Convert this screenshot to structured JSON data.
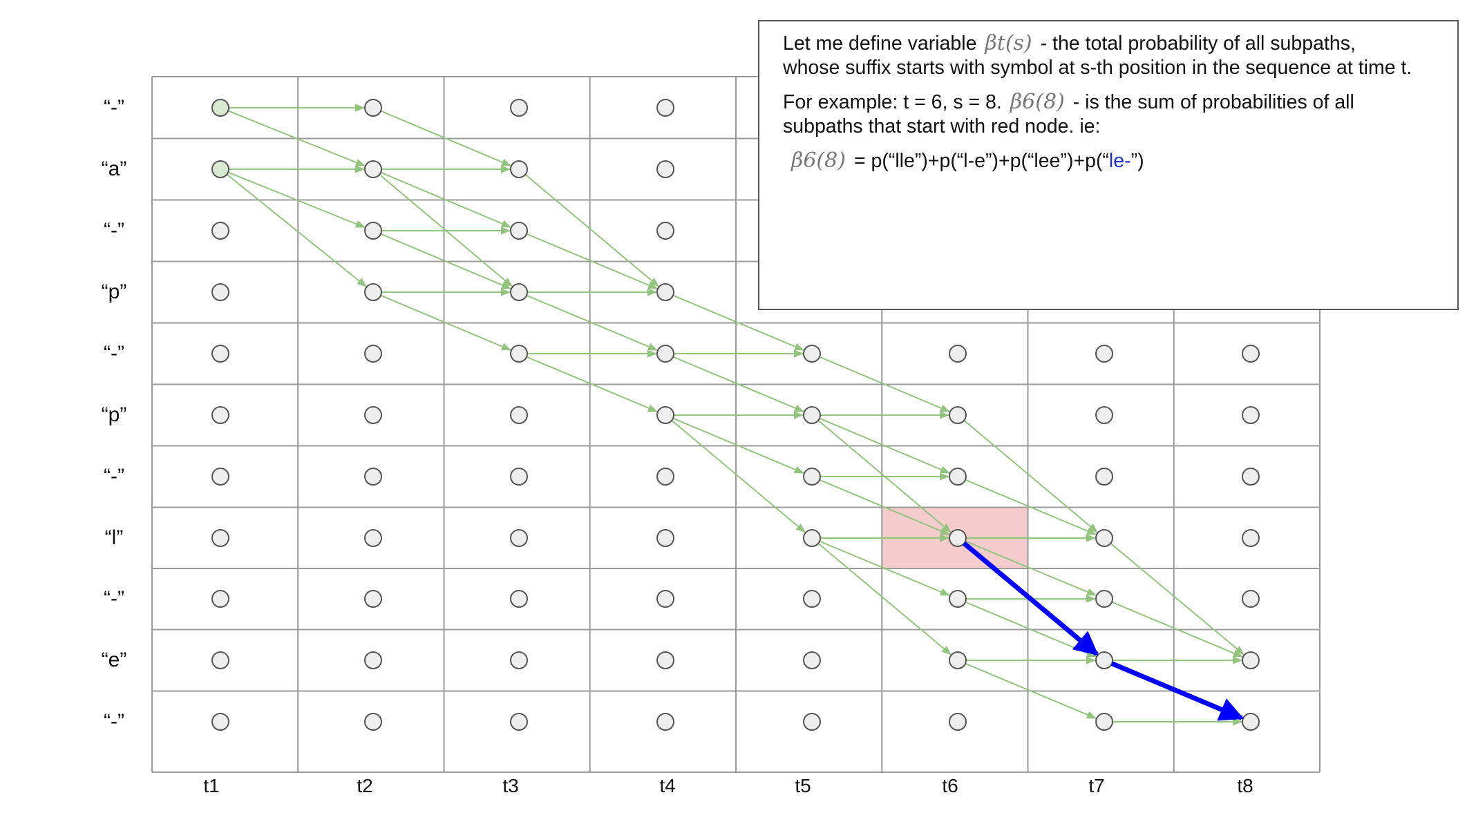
{
  "diagram": {
    "rows": [
      "“-”",
      "“a”",
      "“-”",
      "“p”",
      "“-”",
      "“p”",
      "“-”",
      "“l”",
      "“-”",
      "“e”",
      "“-”"
    ],
    "columns": [
      "t1",
      "t2",
      "t3",
      "t4",
      "t5",
      "t6",
      "t7",
      "t8"
    ],
    "start_nodes": [
      {
        "t": 1,
        "s": 1
      },
      {
        "t": 1,
        "s": 2
      }
    ],
    "highlighted_cell": {
      "t": 6,
      "s": 8
    },
    "green_edges": [
      [
        1,
        1,
        2,
        1
      ],
      [
        1,
        1,
        2,
        2
      ],
      [
        1,
        2,
        2,
        2
      ],
      [
        1,
        2,
        2,
        3
      ],
      [
        1,
        2,
        2,
        4
      ],
      [
        2,
        1,
        3,
        2
      ],
      [
        2,
        2,
        3,
        2
      ],
      [
        2,
        2,
        3,
        3
      ],
      [
        2,
        2,
        3,
        4
      ],
      [
        2,
        3,
        3,
        3
      ],
      [
        2,
        3,
        3,
        4
      ],
      [
        2,
        4,
        3,
        4
      ],
      [
        2,
        4,
        3,
        5
      ],
      [
        3,
        2,
        4,
        4
      ],
      [
        3,
        3,
        4,
        4
      ],
      [
        3,
        4,
        4,
        4
      ],
      [
        3,
        4,
        4,
        5
      ],
      [
        3,
        5,
        4,
        5
      ],
      [
        3,
        5,
        4,
        6
      ],
      [
        4,
        4,
        5,
        5
      ],
      [
        4,
        5,
        5,
        5
      ],
      [
        4,
        5,
        5,
        6
      ],
      [
        4,
        6,
        5,
        6
      ],
      [
        4,
        6,
        5,
        7
      ],
      [
        4,
        6,
        5,
        8
      ],
      [
        5,
        5,
        6,
        6
      ],
      [
        5,
        6,
        6,
        6
      ],
      [
        5,
        6,
        6,
        7
      ],
      [
        5,
        6,
        6,
        8
      ],
      [
        5,
        7,
        6,
        7
      ],
      [
        5,
        7,
        6,
        8
      ],
      [
        5,
        8,
        6,
        8
      ],
      [
        5,
        8,
        6,
        9
      ],
      [
        5,
        8,
        6,
        10
      ],
      [
        6,
        6,
        7,
        8
      ],
      [
        6,
        7,
        7,
        8
      ],
      [
        6,
        8,
        7,
        8
      ],
      [
        6,
        8,
        7,
        9
      ],
      [
        6,
        9,
        7,
        9
      ],
      [
        6,
        9,
        7,
        10
      ],
      [
        6,
        10,
        7,
        10
      ],
      [
        6,
        10,
        7,
        11
      ],
      [
        7,
        8,
        8,
        10
      ],
      [
        7,
        9,
        8,
        10
      ],
      [
        7,
        10,
        8,
        10
      ],
      [
        7,
        11,
        8,
        11
      ]
    ],
    "blue_path": [
      {
        "t": 6,
        "s": 8
      },
      {
        "t": 7,
        "s": 10
      },
      {
        "t": 8,
        "s": 11
      }
    ],
    "colors": {
      "grid": "#9a9a9a",
      "node_fill": "#eeeeee",
      "node_stroke": "#555555",
      "start_node_fill": "#d9ead3",
      "edge": "#93c47d",
      "highlight": "#f4cccc",
      "blue_path": "#0000ff"
    }
  },
  "note": {
    "line1_pre": "Let me define variable",
    "line1_math": "βt(s)",
    "line1_post": "- the total probability of all subpaths,",
    "line2": "whose suffix starts with symbol at s-th position in the sequence at time t.",
    "line3_pre": "For example: t = 6, s = 8.",
    "line3_math": "β6(8)",
    "line3_post": "- is the sum of probabilities of all",
    "line4": "subpaths that start with red node. ie:",
    "formula_math": "β6(8)",
    "formula_text": "= p(“lle”)+p(“l-e”)+p(“lee”)+p(“",
    "formula_blue": "le-",
    "formula_end": "”)"
  }
}
